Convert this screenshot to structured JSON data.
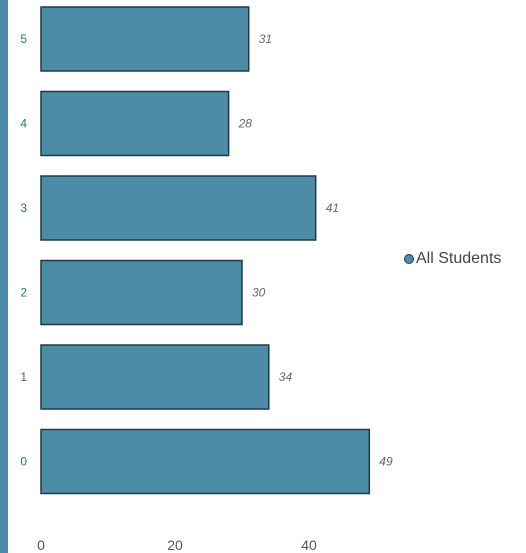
{
  "chart_data": {
    "type": "bar",
    "orientation": "horizontal",
    "categories": [
      "5",
      "4",
      "3",
      "2",
      "1",
      "0"
    ],
    "series": [
      {
        "name": "All Students",
        "values": [
          31,
          28,
          41,
          30,
          34,
          49
        ]
      }
    ],
    "x_ticks": [
      "0",
      "20",
      "40"
    ],
    "xlim": [
      0,
      49
    ],
    "grid": false,
    "legend_position": "right",
    "colors": {
      "bar_fill": "#4d8ca6",
      "bar_stroke": "#1e3a47",
      "accent_strip": "#4a8ba5"
    }
  }
}
